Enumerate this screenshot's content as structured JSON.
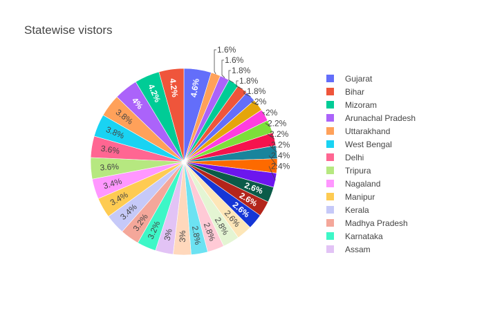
{
  "chart_data": {
    "type": "pie",
    "title": "Statewise vistors",
    "slices": [
      {
        "label": "Gujarat",
        "percent_label": "4.6%",
        "value": 4.6,
        "color": "#636efa"
      },
      {
        "label": "",
        "percent_label": "1.6%",
        "value": 1.6,
        "color": "#FFA15A"
      },
      {
        "label": "",
        "percent_label": "1.6%",
        "value": 1.6,
        "color": "#AB63FA"
      },
      {
        "label": "",
        "percent_label": "1.8%",
        "value": 1.8,
        "color": "#00CC96"
      },
      {
        "label": "",
        "percent_label": "1.8%",
        "value": 1.8,
        "color": "#EF553B"
      },
      {
        "label": "",
        "percent_label": "1.8%",
        "value": 1.8,
        "color": "#636EFA"
      },
      {
        "label": "",
        "percent_label": "2%",
        "value": 2.0,
        "color": "#E5A50A"
      },
      {
        "label": "",
        "percent_label": "2%",
        "value": 2.0,
        "color": "#FF3DE0"
      },
      {
        "label": "",
        "percent_label": "2.2%",
        "value": 2.2,
        "color": "#7CE03A"
      },
      {
        "label": "",
        "percent_label": "2.2%",
        "value": 2.2,
        "color": "#F5134E"
      },
      {
        "label": "",
        "percent_label": "2.2%",
        "value": 2.2,
        "color": "#19849C"
      },
      {
        "label": "",
        "percent_label": "2.4%",
        "value": 2.4,
        "color": "#FD6A00"
      },
      {
        "label": "",
        "percent_label": "2.4%",
        "value": 2.4,
        "color": "#6C16EE"
      },
      {
        "label": "",
        "percent_label": "2.6%",
        "value": 2.6,
        "color": "#0B5B48"
      },
      {
        "label": "",
        "percent_label": "2.6%",
        "value": 2.6,
        "color": "#B3251B"
      },
      {
        "label": "",
        "percent_label": "2.6%",
        "value": 2.6,
        "color": "#1536D6"
      },
      {
        "label": "",
        "percent_label": "2.6%",
        "value": 2.6,
        "color": "#FDE6B8"
      },
      {
        "label": "",
        "percent_label": "2.8%",
        "value": 2.8,
        "color": "#E4F5D3"
      },
      {
        "label": "",
        "percent_label": "2.8%",
        "value": 2.8,
        "color": "#FFCAD6"
      },
      {
        "label": "",
        "percent_label": "2.8%",
        "value": 2.8,
        "color": "#6CE2F2"
      },
      {
        "label": "",
        "percent_label": "3%",
        "value": 3.0,
        "color": "#FFD8BC"
      },
      {
        "label": "Assam",
        "percent_label": "3%",
        "value": 3.0,
        "color": "#E2C3F5"
      },
      {
        "label": "Karnataka",
        "percent_label": "3.2%",
        "value": 3.2,
        "color": "#3DF7C7"
      },
      {
        "label": "Madhya Pradesh",
        "percent_label": "3.2%",
        "value": 3.2,
        "color": "#F4A79A"
      },
      {
        "label": "Kerala",
        "percent_label": "3.4%",
        "value": 3.4,
        "color": "#C6C9F8"
      },
      {
        "label": "Manipur",
        "percent_label": "3.4%",
        "value": 3.4,
        "color": "#FECB52"
      },
      {
        "label": "Nagaland",
        "percent_label": "3.4%",
        "value": 3.4,
        "color": "#FF97FF"
      },
      {
        "label": "Tripura",
        "percent_label": "3.6%",
        "value": 3.6,
        "color": "#B6E880"
      },
      {
        "label": "Delhi",
        "percent_label": "3.6%",
        "value": 3.6,
        "color": "#FF6692"
      },
      {
        "label": "West Bengal",
        "percent_label": "3.8%",
        "value": 3.8,
        "color": "#19D3F3"
      },
      {
        "label": "Uttarakhand",
        "percent_label": "3.8%",
        "value": 3.8,
        "color": "#FFA15A"
      },
      {
        "label": "Arunachal Pradesh",
        "percent_label": "4%",
        "value": 4.0,
        "color": "#AB63FA"
      },
      {
        "label": "Mizoram",
        "percent_label": "4.2%",
        "value": 4.2,
        "color": "#00CC96"
      },
      {
        "label": "Bihar",
        "percent_label": "4.2%",
        "value": 4.2,
        "color": "#EF553B"
      }
    ],
    "legend": [
      {
        "label": "Gujarat",
        "color": "#636efa"
      },
      {
        "label": "Bihar",
        "color": "#EF553B"
      },
      {
        "label": "Mizoram",
        "color": "#00CC96"
      },
      {
        "label": "Arunachal Pradesh",
        "color": "#AB63FA"
      },
      {
        "label": "Uttarakhand",
        "color": "#FFA15A"
      },
      {
        "label": "West Bengal",
        "color": "#19D3F3"
      },
      {
        "label": "Delhi",
        "color": "#FF6692"
      },
      {
        "label": "Tripura",
        "color": "#B6E880"
      },
      {
        "label": "Nagaland",
        "color": "#FF97FF"
      },
      {
        "label": "Manipur",
        "color": "#FECB52"
      },
      {
        "label": "Kerala",
        "color": "#C6C9F8"
      },
      {
        "label": "Madhya Pradesh",
        "color": "#F4A79A"
      },
      {
        "label": "Karnataka",
        "color": "#3DF7C7"
      },
      {
        "label": "Assam",
        "color": "#E2C3F5"
      }
    ],
    "legend_placement": "right",
    "direction": "clockwise",
    "start": "top"
  }
}
